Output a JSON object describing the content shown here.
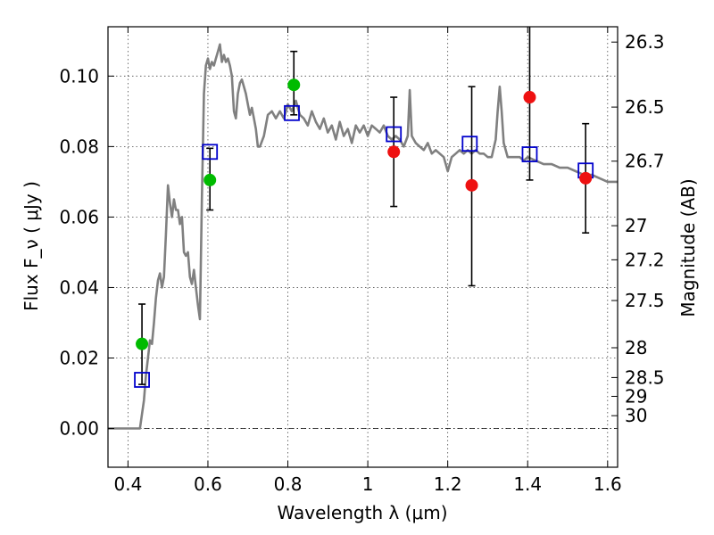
{
  "chart_data": {
    "type": "scatter",
    "xlabel": "Wavelength  λ (μm)",
    "ylabel": "Flux  F_ν  ( μJy )",
    "y2label": "Magnitude (AB)",
    "xlim": [
      0.35,
      1.625
    ],
    "ylim": [
      -0.011,
      0.114
    ],
    "x_ticks": [
      0.4,
      0.6,
      0.8,
      1.0,
      1.2,
      1.4,
      1.6
    ],
    "x_tick_labels": [
      "0.4",
      "0.6",
      "0.8",
      "1",
      "1.2",
      "1.4",
      "1.6"
    ],
    "y_ticks": [
      0.0,
      0.02,
      0.04,
      0.06,
      0.08,
      0.1
    ],
    "y_tick_labels": [
      "0.00",
      "0.02",
      "0.04",
      "0.06",
      "0.08",
      "0.10"
    ],
    "mag_ticks": [
      {
        "mag": 26.3,
        "label": "26.3"
      },
      {
        "mag": 26.5,
        "label": "26.5"
      },
      {
        "mag": 26.7,
        "label": "26.7"
      },
      {
        "mag": 27.0,
        "label": "27"
      },
      {
        "mag": 27.2,
        "label": "27.2"
      },
      {
        "mag": 27.5,
        "label": "27.5"
      },
      {
        "mag": 28.0,
        "label": "28"
      },
      {
        "mag": 28.5,
        "label": "28.5"
      },
      {
        "mag": 29.0,
        "label": "29"
      },
      {
        "mag": 30.0,
        "label": "30"
      }
    ],
    "grid": true,
    "colors": {
      "model": "#808080",
      "green": "#00bb00",
      "red": "#ee1111",
      "square": "#0000cc",
      "errorbar": "#000000"
    },
    "series": [
      {
        "kind": "model_sed",
        "points": [
          [
            0.35,
            0.0
          ],
          [
            0.43,
            0.0
          ],
          [
            0.44,
            0.008
          ],
          [
            0.445,
            0.015
          ],
          [
            0.45,
            0.02
          ],
          [
            0.455,
            0.025
          ],
          [
            0.46,
            0.024
          ],
          [
            0.465,
            0.03
          ],
          [
            0.47,
            0.037
          ],
          [
            0.475,
            0.042
          ],
          [
            0.48,
            0.044
          ],
          [
            0.485,
            0.04
          ],
          [
            0.49,
            0.043
          ],
          [
            0.495,
            0.055
          ],
          [
            0.5,
            0.069
          ],
          [
            0.505,
            0.064
          ],
          [
            0.51,
            0.06
          ],
          [
            0.515,
            0.065
          ],
          [
            0.52,
            0.062
          ],
          [
            0.525,
            0.062
          ],
          [
            0.53,
            0.058
          ],
          [
            0.535,
            0.06
          ],
          [
            0.54,
            0.05
          ],
          [
            0.545,
            0.049
          ],
          [
            0.55,
            0.05
          ],
          [
            0.555,
            0.043
          ],
          [
            0.56,
            0.041
          ],
          [
            0.565,
            0.045
          ],
          [
            0.57,
            0.04
          ],
          [
            0.575,
            0.035
          ],
          [
            0.58,
            0.031
          ],
          [
            0.585,
            0.065
          ],
          [
            0.59,
            0.095
          ],
          [
            0.595,
            0.103
          ],
          [
            0.6,
            0.105
          ],
          [
            0.605,
            0.102
          ],
          [
            0.61,
            0.104
          ],
          [
            0.615,
            0.103
          ],
          [
            0.62,
            0.105
          ],
          [
            0.625,
            0.107
          ],
          [
            0.63,
            0.109
          ],
          [
            0.635,
            0.104
          ],
          [
            0.64,
            0.106
          ],
          [
            0.645,
            0.104
          ],
          [
            0.65,
            0.105
          ],
          [
            0.655,
            0.103
          ],
          [
            0.66,
            0.1
          ],
          [
            0.665,
            0.09
          ],
          [
            0.67,
            0.088
          ],
          [
            0.675,
            0.095
          ],
          [
            0.68,
            0.098
          ],
          [
            0.685,
            0.099
          ],
          [
            0.69,
            0.097
          ],
          [
            0.695,
            0.095
          ],
          [
            0.7,
            0.092
          ],
          [
            0.705,
            0.089
          ],
          [
            0.71,
            0.091
          ],
          [
            0.715,
            0.088
          ],
          [
            0.72,
            0.085
          ],
          [
            0.725,
            0.08
          ],
          [
            0.73,
            0.08
          ],
          [
            0.74,
            0.083
          ],
          [
            0.75,
            0.089
          ],
          [
            0.76,
            0.09
          ],
          [
            0.77,
            0.088
          ],
          [
            0.78,
            0.09
          ],
          [
            0.79,
            0.088
          ],
          [
            0.8,
            0.092
          ],
          [
            0.81,
            0.09
          ],
          [
            0.82,
            0.093
          ],
          [
            0.83,
            0.089
          ],
          [
            0.84,
            0.088
          ],
          [
            0.85,
            0.086
          ],
          [
            0.86,
            0.09
          ],
          [
            0.87,
            0.087
          ],
          [
            0.88,
            0.085
          ],
          [
            0.89,
            0.088
          ],
          [
            0.9,
            0.084
          ],
          [
            0.91,
            0.086
          ],
          [
            0.92,
            0.082
          ],
          [
            0.93,
            0.087
          ],
          [
            0.94,
            0.083
          ],
          [
            0.95,
            0.085
          ],
          [
            0.96,
            0.081
          ],
          [
            0.97,
            0.086
          ],
          [
            0.98,
            0.084
          ],
          [
            0.99,
            0.086
          ],
          [
            1.0,
            0.083
          ],
          [
            1.01,
            0.086
          ],
          [
            1.02,
            0.085
          ],
          [
            1.03,
            0.084
          ],
          [
            1.04,
            0.086
          ],
          [
            1.05,
            0.083
          ],
          [
            1.06,
            0.082
          ],
          [
            1.07,
            0.083
          ],
          [
            1.08,
            0.082
          ],
          [
            1.09,
            0.08
          ],
          [
            1.1,
            0.083
          ],
          [
            1.105,
            0.096
          ],
          [
            1.11,
            0.083
          ],
          [
            1.12,
            0.081
          ],
          [
            1.13,
            0.08
          ],
          [
            1.14,
            0.079
          ],
          [
            1.15,
            0.081
          ],
          [
            1.16,
            0.078
          ],
          [
            1.17,
            0.079
          ],
          [
            1.18,
            0.078
          ],
          [
            1.19,
            0.077
          ],
          [
            1.2,
            0.073
          ],
          [
            1.21,
            0.077
          ],
          [
            1.22,
            0.078
          ],
          [
            1.23,
            0.079
          ],
          [
            1.24,
            0.078
          ],
          [
            1.25,
            0.079
          ],
          [
            1.26,
            0.078
          ],
          [
            1.27,
            0.079
          ],
          [
            1.28,
            0.078
          ],
          [
            1.29,
            0.078
          ],
          [
            1.3,
            0.077
          ],
          [
            1.31,
            0.077
          ],
          [
            1.32,
            0.082
          ],
          [
            1.325,
            0.09
          ],
          [
            1.33,
            0.097
          ],
          [
            1.335,
            0.09
          ],
          [
            1.34,
            0.081
          ],
          [
            1.35,
            0.077
          ],
          [
            1.36,
            0.077
          ],
          [
            1.37,
            0.077
          ],
          [
            1.38,
            0.077
          ],
          [
            1.39,
            0.076
          ],
          [
            1.4,
            0.077
          ],
          [
            1.42,
            0.076
          ],
          [
            1.44,
            0.075
          ],
          [
            1.46,
            0.075
          ],
          [
            1.48,
            0.074
          ],
          [
            1.5,
            0.074
          ],
          [
            1.52,
            0.073
          ],
          [
            1.54,
            0.072
          ],
          [
            1.56,
            0.072
          ],
          [
            1.58,
            0.071
          ],
          [
            1.6,
            0.07
          ],
          [
            1.625,
            0.07
          ]
        ]
      },
      {
        "kind": "green_points",
        "points": [
          {
            "x": 0.435,
            "y": 0.024
          },
          {
            "x": 0.605,
            "y": 0.0705
          },
          {
            "x": 0.815,
            "y": 0.0975
          }
        ]
      },
      {
        "kind": "red_points",
        "points": [
          {
            "x": 1.065,
            "y": 0.0785
          },
          {
            "x": 1.26,
            "y": 0.069
          },
          {
            "x": 1.405,
            "y": 0.094
          },
          {
            "x": 1.545,
            "y": 0.071
          }
        ]
      },
      {
        "kind": "model_squares",
        "points": [
          {
            "x": 0.435,
            "y": 0.0138
          },
          {
            "x": 0.605,
            "y": 0.0785
          },
          {
            "x": 0.81,
            "y": 0.0895
          },
          {
            "x": 1.065,
            "y": 0.0835
          },
          {
            "x": 1.255,
            "y": 0.0808
          },
          {
            "x": 1.405,
            "y": 0.0778
          },
          {
            "x": 1.545,
            "y": 0.0732
          }
        ]
      },
      {
        "kind": "error_bars",
        "points": [
          {
            "x": 0.435,
            "lo": 0.0125,
            "hi": 0.0353
          },
          {
            "x": 0.605,
            "lo": 0.062,
            "hi": 0.0795
          },
          {
            "x": 0.815,
            "lo": 0.089,
            "hi": 0.107
          },
          {
            "x": 1.065,
            "lo": 0.063,
            "hi": 0.094
          },
          {
            "x": 1.26,
            "lo": 0.0405,
            "hi": 0.097
          },
          {
            "x": 1.405,
            "lo": 0.0705,
            "hi": 0.114
          },
          {
            "x": 1.545,
            "lo": 0.0555,
            "hi": 0.0865
          }
        ]
      }
    ]
  }
}
